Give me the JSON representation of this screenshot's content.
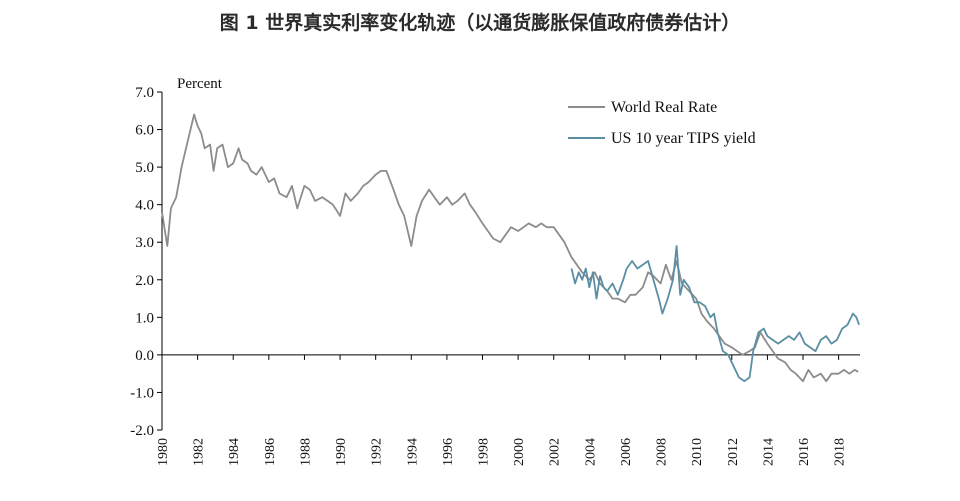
{
  "chart_data": {
    "type": "line",
    "title": "图 1 世界真实利率变化轨迹（以通货膨胀保值政府债券估计）",
    "ylabel": "Percent",
    "xlabel": "",
    "ylim": [
      -2.0,
      7.0
    ],
    "xlim": [
      1980,
      2019.2
    ],
    "y_ticks": [
      7.0,
      6.0,
      5.0,
      4.0,
      3.0,
      2.0,
      1.0,
      0.0,
      -1.0,
      -2.0
    ],
    "y_tick_labels": [
      "7.0",
      "6.0",
      "5.0",
      "4.0",
      "3.0",
      "2.0",
      "1.0",
      "0.0",
      "-1.0",
      "-2.0"
    ],
    "x_ticks": [
      1980,
      1982,
      1984,
      1986,
      1988,
      1990,
      1992,
      1994,
      1996,
      1998,
      2000,
      2002,
      2004,
      2006,
      2008,
      2010,
      2012,
      2014,
      2016,
      2018
    ],
    "x_tick_labels": [
      "1980",
      "1982",
      "1984",
      "1986",
      "1988",
      "1990",
      "1992",
      "1994",
      "1996",
      "1998",
      "2000",
      "2002",
      "2004",
      "2006",
      "2008",
      "2010",
      "2012",
      "2014",
      "2016",
      "2018"
    ],
    "legend_position": "top-right",
    "series": [
      {
        "name": "World Real Rate",
        "color": "#8c8c8c",
        "points": [
          [
            1980.0,
            3.8
          ],
          [
            1980.3,
            2.9
          ],
          [
            1980.5,
            3.9
          ],
          [
            1980.8,
            4.2
          ],
          [
            1981.1,
            5.0
          ],
          [
            1981.4,
            5.6
          ],
          [
            1981.6,
            6.0
          ],
          [
            1981.8,
            6.4
          ],
          [
            1982.0,
            6.1
          ],
          [
            1982.2,
            5.9
          ],
          [
            1982.4,
            5.5
          ],
          [
            1982.7,
            5.6
          ],
          [
            1982.9,
            4.9
          ],
          [
            1983.1,
            5.5
          ],
          [
            1983.4,
            5.6
          ],
          [
            1983.7,
            5.0
          ],
          [
            1984.0,
            5.1
          ],
          [
            1984.3,
            5.5
          ],
          [
            1984.5,
            5.2
          ],
          [
            1984.8,
            5.1
          ],
          [
            1985.0,
            4.9
          ],
          [
            1985.3,
            4.8
          ],
          [
            1985.6,
            5.0
          ],
          [
            1986.0,
            4.6
          ],
          [
            1986.3,
            4.7
          ],
          [
            1986.6,
            4.3
          ],
          [
            1987.0,
            4.2
          ],
          [
            1987.3,
            4.5
          ],
          [
            1987.6,
            3.9
          ],
          [
            1988.0,
            4.5
          ],
          [
            1988.3,
            4.4
          ],
          [
            1988.6,
            4.1
          ],
          [
            1989.0,
            4.2
          ],
          [
            1989.3,
            4.1
          ],
          [
            1989.6,
            4.0
          ],
          [
            1990.0,
            3.7
          ],
          [
            1990.3,
            4.3
          ],
          [
            1990.6,
            4.1
          ],
          [
            1991.0,
            4.3
          ],
          [
            1991.3,
            4.5
          ],
          [
            1991.6,
            4.6
          ],
          [
            1992.0,
            4.8
          ],
          [
            1992.3,
            4.9
          ],
          [
            1992.6,
            4.9
          ],
          [
            1993.0,
            4.4
          ],
          [
            1993.3,
            4.0
          ],
          [
            1993.6,
            3.7
          ],
          [
            1994.0,
            2.9
          ],
          [
            1994.3,
            3.7
          ],
          [
            1994.6,
            4.1
          ],
          [
            1995.0,
            4.4
          ],
          [
            1995.3,
            4.2
          ],
          [
            1995.6,
            4.0
          ],
          [
            1996.0,
            4.2
          ],
          [
            1996.3,
            4.0
          ],
          [
            1996.6,
            4.1
          ],
          [
            1997.0,
            4.3
          ],
          [
            1997.3,
            4.0
          ],
          [
            1997.6,
            3.8
          ],
          [
            1998.0,
            3.5
          ],
          [
            1998.3,
            3.3
          ],
          [
            1998.6,
            3.1
          ],
          [
            1999.0,
            3.0
          ],
          [
            1999.3,
            3.2
          ],
          [
            1999.6,
            3.4
          ],
          [
            2000.0,
            3.3
          ],
          [
            2000.3,
            3.4
          ],
          [
            2000.6,
            3.5
          ],
          [
            2001.0,
            3.4
          ],
          [
            2001.3,
            3.5
          ],
          [
            2001.6,
            3.4
          ],
          [
            2002.0,
            3.4
          ],
          [
            2002.3,
            3.2
          ],
          [
            2002.6,
            3.0
          ],
          [
            2003.0,
            2.6
          ],
          [
            2003.3,
            2.4
          ],
          [
            2003.6,
            2.2
          ],
          [
            2004.0,
            2.0
          ],
          [
            2004.3,
            2.2
          ],
          [
            2004.6,
            1.9
          ],
          [
            2005.0,
            1.7
          ],
          [
            2005.3,
            1.5
          ],
          [
            2005.6,
            1.5
          ],
          [
            2006.0,
            1.4
          ],
          [
            2006.3,
            1.6
          ],
          [
            2006.6,
            1.6
          ],
          [
            2007.0,
            1.8
          ],
          [
            2007.3,
            2.2
          ],
          [
            2007.6,
            2.1
          ],
          [
            2008.0,
            1.9
          ],
          [
            2008.3,
            2.4
          ],
          [
            2008.6,
            2.0
          ],
          [
            2008.9,
            2.5
          ],
          [
            2009.2,
            1.9
          ],
          [
            2009.6,
            1.7
          ],
          [
            2010.0,
            1.5
          ],
          [
            2010.3,
            1.1
          ],
          [
            2010.6,
            0.9
          ],
          [
            2011.0,
            0.7
          ],
          [
            2011.3,
            0.5
          ],
          [
            2011.6,
            0.3
          ],
          [
            2012.0,
            0.2
          ],
          [
            2012.3,
            0.1
          ],
          [
            2012.6,
            0.0
          ],
          [
            2013.0,
            0.1
          ],
          [
            2013.3,
            0.2
          ],
          [
            2013.6,
            0.6
          ],
          [
            2014.0,
            0.3
          ],
          [
            2014.3,
            0.1
          ],
          [
            2014.6,
            -0.1
          ],
          [
            2015.0,
            -0.2
          ],
          [
            2015.3,
            -0.4
          ],
          [
            2015.6,
            -0.5
          ],
          [
            2016.0,
            -0.7
          ],
          [
            2016.3,
            -0.4
          ],
          [
            2016.6,
            -0.6
          ],
          [
            2017.0,
            -0.5
          ],
          [
            2017.3,
            -0.7
          ],
          [
            2017.6,
            -0.5
          ],
          [
            2018.0,
            -0.5
          ],
          [
            2018.3,
            -0.4
          ],
          [
            2018.6,
            -0.5
          ],
          [
            2018.9,
            -0.4
          ],
          [
            2019.1,
            -0.45
          ]
        ]
      },
      {
        "name": "US 10 year TIPS yield",
        "color": "#5a8fa3",
        "points": [
          [
            2003.0,
            2.3
          ],
          [
            2003.2,
            1.9
          ],
          [
            2003.4,
            2.2
          ],
          [
            2003.6,
            2.0
          ],
          [
            2003.8,
            2.3
          ],
          [
            2004.0,
            1.8
          ],
          [
            2004.2,
            2.2
          ],
          [
            2004.4,
            1.5
          ],
          [
            2004.6,
            2.1
          ],
          [
            2004.8,
            1.8
          ],
          [
            2005.0,
            1.7
          ],
          [
            2005.3,
            1.9
          ],
          [
            2005.6,
            1.6
          ],
          [
            2005.9,
            2.0
          ],
          [
            2006.1,
            2.3
          ],
          [
            2006.4,
            2.5
          ],
          [
            2006.7,
            2.3
          ],
          [
            2007.0,
            2.4
          ],
          [
            2007.3,
            2.5
          ],
          [
            2007.6,
            2.0
          ],
          [
            2007.9,
            1.5
          ],
          [
            2008.1,
            1.1
          ],
          [
            2008.4,
            1.5
          ],
          [
            2008.7,
            2.0
          ],
          [
            2008.9,
            2.9
          ],
          [
            2009.1,
            1.6
          ],
          [
            2009.3,
            2.0
          ],
          [
            2009.6,
            1.8
          ],
          [
            2009.9,
            1.4
          ],
          [
            2010.2,
            1.4
          ],
          [
            2010.5,
            1.3
          ],
          [
            2010.8,
            1.0
          ],
          [
            2011.0,
            1.1
          ],
          [
            2011.2,
            0.6
          ],
          [
            2011.5,
            0.1
          ],
          [
            2011.8,
            0.0
          ],
          [
            2012.1,
            -0.3
          ],
          [
            2012.4,
            -0.6
          ],
          [
            2012.7,
            -0.7
          ],
          [
            2013.0,
            -0.6
          ],
          [
            2013.2,
            0.1
          ],
          [
            2013.5,
            0.6
          ],
          [
            2013.8,
            0.7
          ],
          [
            2014.0,
            0.5
          ],
          [
            2014.3,
            0.4
          ],
          [
            2014.6,
            0.3
          ],
          [
            2014.9,
            0.4
          ],
          [
            2015.2,
            0.5
          ],
          [
            2015.5,
            0.4
          ],
          [
            2015.8,
            0.6
          ],
          [
            2016.1,
            0.3
          ],
          [
            2016.4,
            0.2
          ],
          [
            2016.7,
            0.1
          ],
          [
            2017.0,
            0.4
          ],
          [
            2017.3,
            0.5
          ],
          [
            2017.6,
            0.3
          ],
          [
            2017.9,
            0.4
          ],
          [
            2018.2,
            0.7
          ],
          [
            2018.5,
            0.8
          ],
          [
            2018.8,
            1.1
          ],
          [
            2019.0,
            1.0
          ],
          [
            2019.15,
            0.8
          ]
        ]
      }
    ]
  }
}
